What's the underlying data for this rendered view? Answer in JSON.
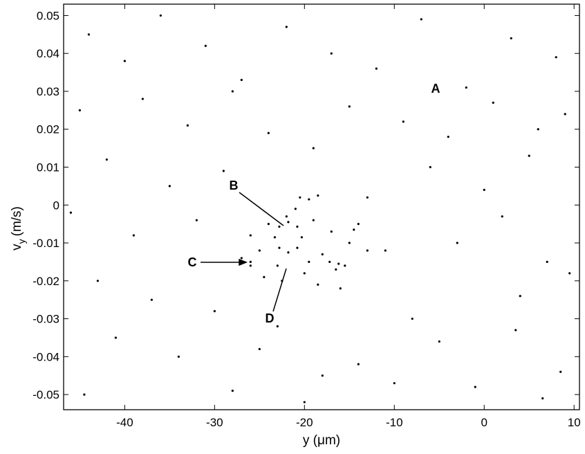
{
  "chart_data": {
    "type": "scatter",
    "x_label": "y (μm)",
    "y_label": "v",
    "y_label_sub": "y",
    "y_label_unit": "(m/s)",
    "annotations": [
      "A",
      "B",
      "C",
      "D"
    ],
    "color": "#000000",
    "xlim": [
      -46.8,
      10.6
    ],
    "ylim": [
      -0.054,
      0.053
    ],
    "xticks": [
      -40,
      -30,
      -20,
      -10,
      0,
      10
    ],
    "yticks": [
      -0.05,
      -0.04,
      -0.03,
      -0.02,
      -0.01,
      0,
      0.01,
      0.02,
      0.03,
      0.04,
      0.05
    ],
    "x": [
      -44,
      -40,
      -36,
      -31,
      -27,
      -22,
      -17,
      -12,
      -7,
      -2,
      3,
      8,
      -45,
      -38,
      -33,
      -28,
      -24,
      -15,
      -9,
      -4,
      1,
      6,
      9,
      -42,
      -35,
      -29,
      -19,
      -13,
      -6,
      0,
      5,
      -46,
      -39,
      -32,
      -11,
      -3,
      2,
      7,
      -43,
      -37,
      -30,
      -23,
      -16,
      -8,
      4,
      9.5,
      -41,
      -34,
      -25,
      -18,
      -14,
      -5,
      -1,
      3.5,
      8.5,
      -44.5,
      -20,
      -10,
      6.5,
      -28,
      -24,
      -22,
      -19,
      -17,
      -25,
      -23,
      -20,
      -18,
      -26,
      -15,
      -21,
      -19.5,
      -24.5,
      -16.5,
      -27,
      -13,
      -20.5,
      -18.5,
      -22.5,
      -14,
      -20.3,
      -20.8,
      -21.8,
      -22.8,
      -23.3,
      -22.8,
      -21.8,
      -20.8,
      -26,
      -26,
      -17.2,
      -16.2,
      -15.5,
      -19.5,
      -18.5,
      -14.5
    ],
    "values": [
      0.045,
      0.038,
      0.05,
      0.042,
      0.033,
      0.047,
      0.04,
      0.036,
      0.049,
      0.031,
      0.044,
      0.039,
      0.025,
      0.028,
      0.021,
      0.03,
      0.019,
      0.026,
      0.022,
      0.018,
      0.027,
      0.02,
      0.024,
      0.012,
      0.005,
      0.009,
      0.015,
      0.002,
      0.01,
      0.004,
      0.013,
      -0.002,
      -0.008,
      -0.004,
      -0.012,
      -0.01,
      -0.003,
      -0.015,
      -0.02,
      -0.025,
      -0.028,
      -0.032,
      -0.022,
      -0.03,
      -0.024,
      -0.018,
      -0.035,
      -0.04,
      -0.038,
      -0.045,
      -0.042,
      -0.036,
      -0.048,
      -0.033,
      -0.044,
      -0.05,
      -0.052,
      -0.047,
      -0.051,
      -0.049,
      -0.005,
      -0.003,
      -0.004,
      -0.007,
      -0.012,
      -0.016,
      -0.018,
      -0.013,
      -0.008,
      -0.01,
      -0.001,
      -0.015,
      -0.019,
      -0.017,
      -0.014,
      -0.012,
      0.002,
      -0.021,
      -0.02,
      -0.005,
      -0.0085,
      -0.0057,
      -0.0045,
      -0.0057,
      -0.0085,
      -0.0113,
      -0.0125,
      -0.0113,
      -0.015,
      -0.016,
      -0.015,
      -0.0155,
      -0.016,
      0.0015,
      0.0025,
      -0.0065
    ]
  }
}
